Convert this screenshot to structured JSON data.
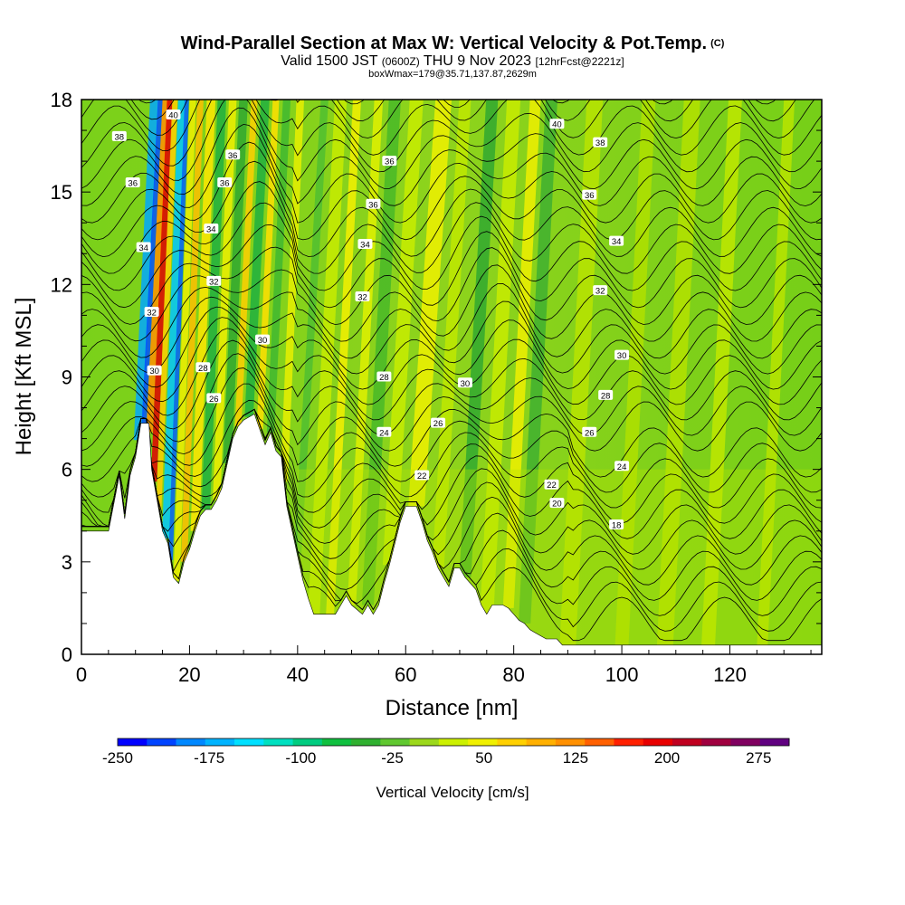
{
  "header": {
    "title": "Wind-Parallel Section at Max W: Vertical Velocity & Pot.Temp.",
    "copyright": "(C)",
    "valid_prefix": "Valid 1500 JST",
    "valid_utc": "(0600Z)",
    "valid_day": "THU 9 Nov 2023",
    "forecast_info": "[12hrFcst@2221z]",
    "box_info": "boxWmax=179@35.71,137.87,2629m"
  },
  "chart_data": {
    "type": "heatmap",
    "xlabel": "Distance [nm]",
    "ylabel": "Height [Kft MSL]",
    "xlim": [
      0,
      137
    ],
    "ylim": [
      0,
      18
    ],
    "x_ticks": [
      "0",
      "20",
      "40",
      "60",
      "80",
      "100",
      "120"
    ],
    "y_ticks": [
      "0",
      "3",
      "6",
      "9",
      "12",
      "15",
      "18"
    ],
    "colorbar": {
      "label": "Vertical Velocity [cm/s]",
      "range": [
        -250,
        300
      ],
      "step": 25,
      "tick_labels": [
        "-250",
        "-175",
        "-100",
        "-25",
        "50",
        "125",
        "200",
        "275"
      ],
      "colors": [
        "#0000ff",
        "#0044ff",
        "#0088ff",
        "#00b4ff",
        "#00e0ff",
        "#00e0c0",
        "#00cc80",
        "#10c040",
        "#30b030",
        "#60c830",
        "#9cd81c",
        "#ccf000",
        "#f0f000",
        "#ffd000",
        "#ffb000",
        "#ff9000",
        "#ff6000",
        "#ff2000",
        "#e80000",
        "#c00020",
        "#a00040",
        "#800060",
        "#600080"
      ]
    },
    "terrain_kft": [
      [
        0,
        4
      ],
      [
        3,
        4
      ],
      [
        5,
        4
      ],
      [
        7,
        5.8
      ],
      [
        8,
        4.4
      ],
      [
        9,
        5.8
      ],
      [
        10,
        6.4
      ],
      [
        11,
        7.5
      ],
      [
        12.5,
        7.5
      ],
      [
        13,
        6
      ],
      [
        14,
        5
      ],
      [
        15,
        4
      ],
      [
        16,
        3.6
      ],
      [
        17,
        2.5
      ],
      [
        18,
        2.3
      ],
      [
        19,
        3
      ],
      [
        20,
        3.4
      ],
      [
        21,
        4
      ],
      [
        22,
        4.5
      ],
      [
        23,
        4.7
      ],
      [
        24,
        4.7
      ],
      [
        25,
        5
      ],
      [
        26,
        5.4
      ],
      [
        27,
        6.2
      ],
      [
        28,
        7
      ],
      [
        29,
        7.4
      ],
      [
        30,
        7.6
      ],
      [
        32,
        7.8
      ],
      [
        33,
        7.3
      ],
      [
        34,
        6.8
      ],
      [
        35,
        7.2
      ],
      [
        36,
        6.6
      ],
      [
        37,
        6.4
      ],
      [
        38,
        4.8
      ],
      [
        39,
        4
      ],
      [
        40,
        3.2
      ],
      [
        41,
        2.4
      ],
      [
        42,
        1.8
      ],
      [
        43,
        1.3
      ],
      [
        45,
        1.3
      ],
      [
        47,
        1.3
      ],
      [
        48,
        1.6
      ],
      [
        49,
        1.9
      ],
      [
        50,
        1.6
      ],
      [
        52,
        1.3
      ],
      [
        53,
        1.6
      ],
      [
        54,
        1.3
      ],
      [
        55,
        1.6
      ],
      [
        56,
        2.3
      ],
      [
        57,
        2.9
      ],
      [
        58,
        3.6
      ],
      [
        59,
        4.3
      ],
      [
        60,
        4.8
      ],
      [
        62,
        4.8
      ],
      [
        63,
        4.3
      ],
      [
        64,
        3.7
      ],
      [
        65,
        3.3
      ],
      [
        66,
        2.8
      ],
      [
        67,
        2.5
      ],
      [
        68,
        2.2
      ],
      [
        69,
        2.8
      ],
      [
        70,
        2.8
      ],
      [
        71,
        2.5
      ],
      [
        72,
        2.3
      ],
      [
        73,
        2.1
      ],
      [
        74,
        1.6
      ],
      [
        75,
        1.3
      ],
      [
        76,
        1.6
      ],
      [
        78,
        1.6
      ],
      [
        79,
        1.5
      ],
      [
        80,
        1.3
      ],
      [
        81,
        1.1
      ],
      [
        82,
        1
      ],
      [
        83,
        0.8
      ],
      [
        84,
        0.7
      ],
      [
        85,
        0.6
      ],
      [
        86,
        0.5
      ],
      [
        88,
        0.5
      ],
      [
        89,
        0.3
      ],
      [
        137,
        0.3
      ]
    ],
    "contour_labels": [
      {
        "x": 7,
        "y": 16.8,
        "text": "38"
      },
      {
        "x": 17,
        "y": 17.5,
        "text": "40"
      },
      {
        "x": 9.5,
        "y": 15.3,
        "text": "36"
      },
      {
        "x": 28,
        "y": 16.2,
        "text": "36"
      },
      {
        "x": 26.5,
        "y": 15.3,
        "text": "36"
      },
      {
        "x": 24,
        "y": 13.8,
        "text": "34"
      },
      {
        "x": 24.5,
        "y": 12.1,
        "text": "32"
      },
      {
        "x": 11.5,
        "y": 13.2,
        "text": "34"
      },
      {
        "x": 13,
        "y": 11.1,
        "text": "32"
      },
      {
        "x": 13.5,
        "y": 9.2,
        "text": "30"
      },
      {
        "x": 22.5,
        "y": 9.3,
        "text": "28"
      },
      {
        "x": 24.5,
        "y": 8.3,
        "text": "26"
      },
      {
        "x": 33.5,
        "y": 10.2,
        "text": "30"
      },
      {
        "x": 57,
        "y": 16,
        "text": "36"
      },
      {
        "x": 54,
        "y": 14.6,
        "text": "36"
      },
      {
        "x": 52.5,
        "y": 13.3,
        "text": "34"
      },
      {
        "x": 52,
        "y": 11.6,
        "text": "32"
      },
      {
        "x": 56,
        "y": 9.0,
        "text": "28"
      },
      {
        "x": 71,
        "y": 8.8,
        "text": "30"
      },
      {
        "x": 66,
        "y": 7.5,
        "text": "26"
      },
      {
        "x": 56,
        "y": 7.2,
        "text": "24"
      },
      {
        "x": 63,
        "y": 5.8,
        "text": "22"
      },
      {
        "x": 88,
        "y": 17.2,
        "text": "40"
      },
      {
        "x": 96,
        "y": 16.6,
        "text": "38"
      },
      {
        "x": 94,
        "y": 14.9,
        "text": "36"
      },
      {
        "x": 99,
        "y": 13.4,
        "text": "34"
      },
      {
        "x": 96,
        "y": 11.8,
        "text": "32"
      },
      {
        "x": 100,
        "y": 9.7,
        "text": "30"
      },
      {
        "x": 97,
        "y": 8.4,
        "text": "28"
      },
      {
        "x": 94,
        "y": 7.2,
        "text": "26"
      },
      {
        "x": 100,
        "y": 6.1,
        "text": "24"
      },
      {
        "x": 87,
        "y": 5.5,
        "text": "22"
      },
      {
        "x": 88,
        "y": 4.9,
        "text": "20"
      },
      {
        "x": 99,
        "y": 4.2,
        "text": "18"
      }
    ]
  }
}
